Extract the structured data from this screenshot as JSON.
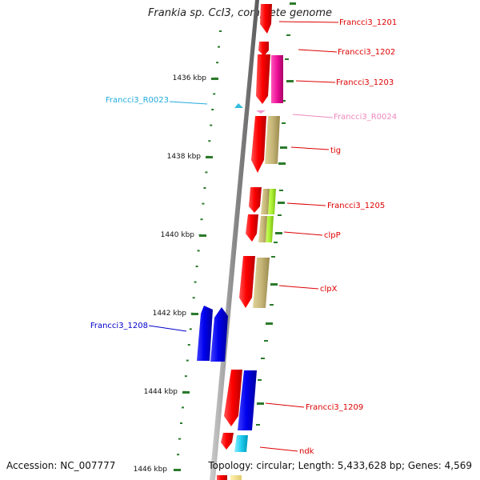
{
  "title": "Frankia sp. CcI3, complete genome",
  "footer": {
    "accession": "Accession: NC_007777",
    "topology": "Topology: circular; Length: 5,433,628 bp; Genes: 4,569"
  },
  "scale_labels": [
    "1436 kbp",
    "1438 kbp",
    "1440 kbp",
    "1442 kbp",
    "1444 kbp",
    "1446 kbp"
  ],
  "colors": {
    "backbone": "#8a8a8a",
    "cds_red": "#ff0000",
    "gene_blue": "#0000ee",
    "trna_cyan": "#33bbdd",
    "trna_pink": "#ee99cc",
    "cog_khaki": "#c8b878",
    "cog_green": "#aaee33",
    "cog_magenta": "#ee1199",
    "cog_sky": "#22ccee",
    "tick_green": "#2b7a2b"
  },
  "genes": [
    {
      "label": "Francci3_1201",
      "color": "#dd0000"
    },
    {
      "label": "Francci3_1202",
      "color": "#dd0000"
    },
    {
      "label": "Francci3_1203",
      "color": "#dd0000"
    },
    {
      "label": "Francci3_R0023",
      "color": "#22aadd"
    },
    {
      "label": "Francci3_R0024",
      "color": "#ee88bb"
    },
    {
      "label": "tig",
      "color": "#dd0000"
    },
    {
      "label": "Francci3_1205",
      "color": "#dd0000"
    },
    {
      "label": "clpP",
      "color": "#dd0000"
    },
    {
      "label": "clpX",
      "color": "#dd0000"
    },
    {
      "label": "Francci3_1208",
      "color": "#0000cc"
    },
    {
      "label": "Francci3_1209",
      "color": "#dd0000"
    },
    {
      "label": "ndk",
      "color": "#dd0000"
    }
  ]
}
